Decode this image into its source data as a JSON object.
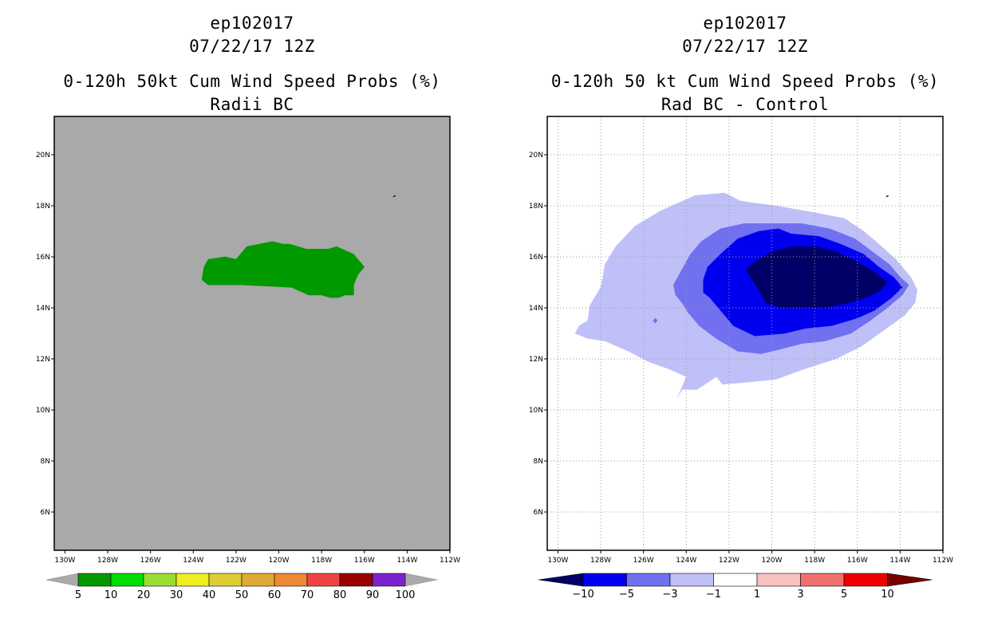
{
  "chart_data": [
    {
      "type": "heatmap",
      "storm_id": "ep102017",
      "datetime": "07/22/17 12Z",
      "title": "0-120h 50kt Cum Wind Speed Probs (%)",
      "subtitle": "Radii BC",
      "x_ticks": [
        "130W",
        "128W",
        "126W",
        "124W",
        "122W",
        "120W",
        "118W",
        "116W",
        "114W",
        "112W"
      ],
      "y_ticks": [
        "20N",
        "18N",
        "16N",
        "14N",
        "12N",
        "10N",
        "8N",
        "6N"
      ],
      "xlim": [
        -130.5,
        -112
      ],
      "ylim": [
        4.5,
        21.5
      ],
      "background_color": "#a9a9a9",
      "grid": false,
      "regions": [
        {
          "level": "5-10",
          "color": "#009900",
          "lonlat": [
            [
              -123.5,
              15.6
            ],
            [
              -123.3,
              15.9
            ],
            [
              -122.5,
              16.0
            ],
            [
              -122.0,
              15.9
            ],
            [
              -121.5,
              16.4
            ],
            [
              -120.3,
              16.6
            ],
            [
              -119.8,
              16.5
            ],
            [
              -119.5,
              16.5
            ],
            [
              -118.7,
              16.3
            ],
            [
              -117.7,
              16.3
            ],
            [
              -117.3,
              16.4
            ],
            [
              -116.5,
              16.1
            ],
            [
              -116.0,
              15.6
            ],
            [
              -116.3,
              15.3
            ],
            [
              -116.5,
              14.9
            ],
            [
              -116.5,
              14.5
            ],
            [
              -116.9,
              14.5
            ],
            [
              -117.2,
              14.4
            ],
            [
              -117.6,
              14.4
            ],
            [
              -118.0,
              14.5
            ],
            [
              -118.6,
              14.5
            ],
            [
              -119.4,
              14.8
            ],
            [
              -120.5,
              14.85
            ],
            [
              -121.8,
              14.9
            ],
            [
              -123.3,
              14.9
            ],
            [
              -123.6,
              15.1
            ]
          ]
        }
      ],
      "colorbar": {
        "labels": [
          "5",
          "10",
          "20",
          "30",
          "40",
          "50",
          "60",
          "70",
          "80",
          "90",
          "100"
        ],
        "colors": [
          "#009900",
          "#00dd00",
          "#99dd33",
          "#eeee22",
          "#ddcc33",
          "#ddaa33",
          "#ee8833",
          "#ee4444",
          "#990000",
          "#7a22cc"
        ],
        "end_color": "#aaaaaa"
      }
    },
    {
      "type": "heatmap",
      "storm_id": "ep102017",
      "datetime": "07/22/17 12Z",
      "title": "0-120h 50 kt Cum Wind Speed Probs (%)",
      "subtitle": "Rad BC - Control",
      "x_ticks": [
        "130W",
        "128W",
        "126W",
        "124W",
        "122W",
        "120W",
        "118W",
        "116W",
        "114W",
        "112W"
      ],
      "y_ticks": [
        "20N",
        "18N",
        "16N",
        "14N",
        "12N",
        "10N",
        "8N",
        "6N"
      ],
      "xlim": [
        -130.5,
        -112
      ],
      "ylim": [
        4.5,
        21.5
      ],
      "background_color": "#ffffff",
      "grid": true,
      "regions": [
        {
          "level": "-3 to -1",
          "color": "#c0c0f8",
          "lonlat": [
            [
              -127.8,
              15.7
            ],
            [
              -127.3,
              16.4
            ],
            [
              -126.4,
              17.2
            ],
            [
              -125.2,
              17.8
            ],
            [
              -123.6,
              18.4
            ],
            [
              -122.2,
              18.5
            ],
            [
              -121.5,
              18.2
            ],
            [
              -120.8,
              18.1
            ],
            [
              -119.8,
              18.0
            ],
            [
              -118.5,
              17.8
            ],
            [
              -117.8,
              17.7
            ],
            [
              -116.6,
              17.5
            ],
            [
              -115.7,
              17.0
            ],
            [
              -115.0,
              16.5
            ],
            [
              -114.2,
              15.9
            ],
            [
              -113.5,
              15.2
            ],
            [
              -113.2,
              14.7
            ],
            [
              -113.3,
              14.2
            ],
            [
              -113.8,
              13.7
            ],
            [
              -114.8,
              13.1
            ],
            [
              -115.8,
              12.5
            ],
            [
              -117.0,
              12.0
            ],
            [
              -118.5,
              11.6
            ],
            [
              -119.8,
              11.2
            ],
            [
              -121.0,
              11.1
            ],
            [
              -122.3,
              11.0
            ],
            [
              -122.6,
              11.3
            ],
            [
              -123.5,
              10.8
            ],
            [
              -124.2,
              10.8
            ],
            [
              -124.4,
              10.5
            ],
            [
              -124.0,
              11.3
            ],
            [
              -124.8,
              11.6
            ],
            [
              -125.8,
              11.9
            ],
            [
              -126.7,
              12.3
            ],
            [
              -127.8,
              12.7
            ],
            [
              -128.6,
              12.8
            ],
            [
              -129.2,
              13.0
            ],
            [
              -129.0,
              13.3
            ],
            [
              -128.6,
              13.5
            ],
            [
              -128.5,
              14.1
            ],
            [
              -128.0,
              14.8
            ],
            [
              -127.9,
              15.2
            ]
          ]
        },
        {
          "level": "-5 to -3",
          "color": "#7070f0",
          "lonlat": [
            [
              -124.2,
              14.2
            ],
            [
              -124.5,
              14.5
            ],
            [
              -124.6,
              14.9
            ],
            [
              -124.2,
              15.5
            ],
            [
              -123.8,
              16.1
            ],
            [
              -123.3,
              16.6
            ],
            [
              -122.4,
              17.1
            ],
            [
              -121.3,
              17.3
            ],
            [
              -120.0,
              17.3
            ],
            [
              -118.6,
              17.3
            ],
            [
              -117.3,
              17.1
            ],
            [
              -116.1,
              16.7
            ],
            [
              -115.3,
              16.2
            ],
            [
              -114.5,
              15.7
            ],
            [
              -114.0,
              15.2
            ],
            [
              -113.6,
              14.9
            ],
            [
              -113.9,
              14.5
            ],
            [
              -114.6,
              14.0
            ],
            [
              -115.4,
              13.5
            ],
            [
              -116.3,
              13.0
            ],
            [
              -117.5,
              12.7
            ],
            [
              -118.6,
              12.6
            ],
            [
              -119.5,
              12.4
            ],
            [
              -120.5,
              12.2
            ],
            [
              -121.6,
              12.3
            ],
            [
              -122.6,
              12.8
            ],
            [
              -123.4,
              13.3
            ],
            [
              -123.9,
              13.8
            ]
          ]
        },
        {
          "level": "-10 to -5",
          "color": "#0000ee",
          "lonlat": [
            [
              -123.2,
              15.1
            ],
            [
              -123.0,
              15.6
            ],
            [
              -122.4,
              16.1
            ],
            [
              -121.6,
              16.7
            ],
            [
              -120.6,
              17.0
            ],
            [
              -119.7,
              17.1
            ],
            [
              -119.1,
              16.9
            ],
            [
              -117.8,
              16.8
            ],
            [
              -116.8,
              16.5
            ],
            [
              -115.7,
              16.1
            ],
            [
              -115.0,
              15.6
            ],
            [
              -114.3,
              15.2
            ],
            [
              -113.9,
              14.8
            ],
            [
              -114.4,
              14.4
            ],
            [
              -115.2,
              13.9
            ],
            [
              -116.0,
              13.6
            ],
            [
              -117.2,
              13.3
            ],
            [
              -118.4,
              13.2
            ],
            [
              -119.4,
              13.0
            ],
            [
              -120.8,
              12.9
            ],
            [
              -121.8,
              13.3
            ],
            [
              -122.4,
              13.9
            ],
            [
              -122.9,
              14.4
            ],
            [
              -123.2,
              14.6
            ]
          ]
        },
        {
          "level": "< -10",
          "color": "#000066",
          "lonlat": [
            [
              -121.2,
              15.5
            ],
            [
              -120.8,
              15.8
            ],
            [
              -120.0,
              16.2
            ],
            [
              -119.0,
              16.4
            ],
            [
              -118.0,
              16.4
            ],
            [
              -117.0,
              16.2
            ],
            [
              -116.0,
              15.8
            ],
            [
              -115.2,
              15.4
            ],
            [
              -114.6,
              15.0
            ],
            [
              -114.9,
              14.7
            ],
            [
              -115.6,
              14.4
            ],
            [
              -116.4,
              14.2
            ],
            [
              -117.5,
              14.0
            ],
            [
              -118.6,
              14.0
            ],
            [
              -119.6,
              14.0
            ],
            [
              -120.3,
              14.2
            ],
            [
              -120.6,
              14.7
            ],
            [
              -121.0,
              15.2
            ]
          ]
        },
        {
          "level": "spot",
          "color": "#7070f0",
          "lonlat": [
            [
              -125.55,
              13.5
            ],
            [
              -125.45,
              13.6
            ],
            [
              -125.35,
              13.5
            ],
            [
              -125.45,
              13.4
            ]
          ]
        }
      ],
      "colorbar": {
        "labels": [
          "-10",
          "-5",
          "-3",
          "-1",
          "1",
          "3",
          "5",
          "10"
        ],
        "colors": [
          "#000066",
          "#0000ee",
          "#7070f0",
          "#c0c0f8",
          "#ffffff",
          "#f8c0c0",
          "#f07070",
          "#ee0000",
          "#770000"
        ]
      }
    }
  ]
}
